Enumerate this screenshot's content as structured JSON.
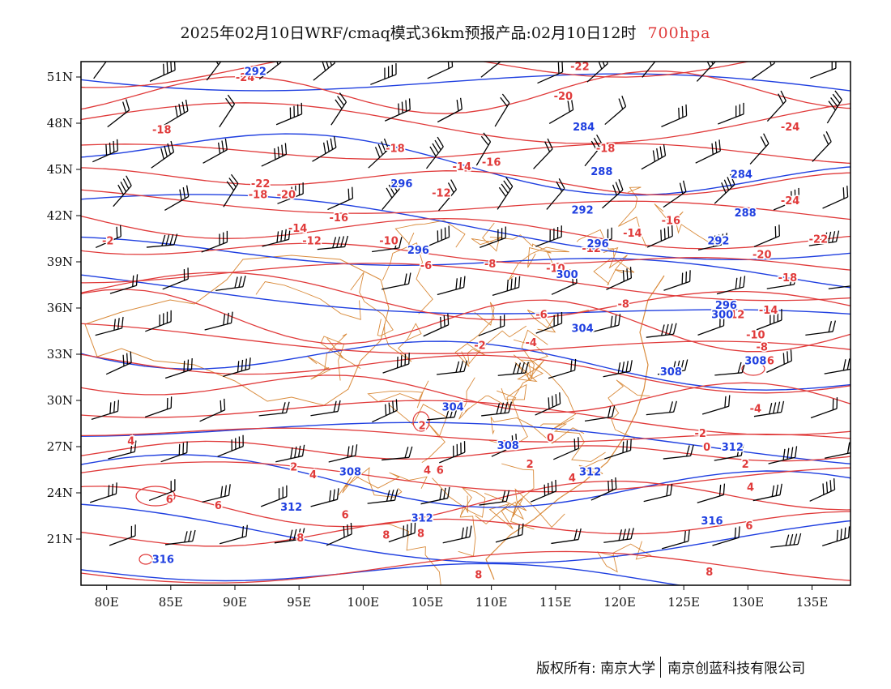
{
  "title": {
    "main": "2025年02月10日WRF/cmaq模式36km预报产品:02月10日12时",
    "level": "700hpa"
  },
  "colors": {
    "temperature": "#e03a3a",
    "geopotential": "#1f3fe0",
    "borders": "#d98a3a",
    "wind": "#000000",
    "frame": "#000000"
  },
  "map": {
    "lon_range": [
      78,
      138
    ],
    "lat_range": [
      18,
      52
    ],
    "lon_ticks": [
      "80E",
      "85E",
      "90E",
      "95E",
      "100E",
      "105E",
      "110E",
      "115E",
      "120E",
      "125E",
      "130E",
      "135E"
    ],
    "lat_ticks": [
      "21N",
      "24N",
      "27N",
      "30N",
      "33N",
      "36N",
      "39N",
      "42N",
      "45N",
      "48N",
      "51N"
    ]
  },
  "temperature_labels": [
    {
      "lon": 90.8,
      "lat": 51.0,
      "text": "-24"
    },
    {
      "lon": 84.3,
      "lat": 47.6,
      "text": "-18"
    },
    {
      "lon": 116.9,
      "lat": 51.7,
      "text": "-22"
    },
    {
      "lon": 115.6,
      "lat": 49.8,
      "text": "-20"
    },
    {
      "lon": 133.3,
      "lat": 47.8,
      "text": "-24"
    },
    {
      "lon": 102.5,
      "lat": 46.4,
      "text": "-18"
    },
    {
      "lon": 107.7,
      "lat": 45.2,
      "text": "-14"
    },
    {
      "lon": 110.0,
      "lat": 45.5,
      "text": "-16"
    },
    {
      "lon": 118.9,
      "lat": 46.4,
      "text": "-18"
    },
    {
      "lon": 92.0,
      "lat": 44.1,
      "text": "-22"
    },
    {
      "lon": 91.8,
      "lat": 43.4,
      "text": "-18"
    },
    {
      "lon": 94.0,
      "lat": 43.4,
      "text": "-20"
    },
    {
      "lon": 106.1,
      "lat": 43.5,
      "text": "-12"
    },
    {
      "lon": 98.1,
      "lat": 41.9,
      "text": "-16"
    },
    {
      "lon": 94.9,
      "lat": 41.2,
      "text": "-14"
    },
    {
      "lon": 96.0,
      "lat": 40.4,
      "text": "-12"
    },
    {
      "lon": 102.0,
      "lat": 40.4,
      "text": "-10"
    },
    {
      "lon": 80.1,
      "lat": 40.4,
      "text": "-2"
    },
    {
      "lon": 133.3,
      "lat": 43.0,
      "text": "-24"
    },
    {
      "lon": 124.0,
      "lat": 41.7,
      "text": "-16"
    },
    {
      "lon": 121.0,
      "lat": 40.9,
      "text": "-14"
    },
    {
      "lon": 117.8,
      "lat": 39.9,
      "text": "-12"
    },
    {
      "lon": 135.5,
      "lat": 40.5,
      "text": "-22"
    },
    {
      "lon": 131.1,
      "lat": 39.5,
      "text": "-20"
    },
    {
      "lon": 133.1,
      "lat": 38.0,
      "text": "-18"
    },
    {
      "lon": 115.0,
      "lat": 38.6,
      "text": "-10"
    },
    {
      "lon": 104.9,
      "lat": 38.8,
      "text": "-6"
    },
    {
      "lon": 109.9,
      "lat": 38.9,
      "text": "-8"
    },
    {
      "lon": 120.3,
      "lat": 36.3,
      "text": "-8"
    },
    {
      "lon": 113.9,
      "lat": 35.6,
      "text": "-6"
    },
    {
      "lon": 129.0,
      "lat": 35.6,
      "text": "-12"
    },
    {
      "lon": 131.6,
      "lat": 35.9,
      "text": "-14"
    },
    {
      "lon": 130.6,
      "lat": 34.3,
      "text": "-10"
    },
    {
      "lon": 131.1,
      "lat": 33.5,
      "text": "-8"
    },
    {
      "lon": 131.6,
      "lat": 32.6,
      "text": "-6"
    },
    {
      "lon": 130.6,
      "lat": 29.5,
      "text": "-4"
    },
    {
      "lon": 109.1,
      "lat": 33.6,
      "text": "-2"
    },
    {
      "lon": 113.1,
      "lat": 33.8,
      "text": "-4"
    },
    {
      "lon": 104.6,
      "lat": 28.4,
      "text": "2"
    },
    {
      "lon": 81.9,
      "lat": 27.4,
      "text": "4"
    },
    {
      "lon": 94.6,
      "lat": 25.7,
      "text": "2"
    },
    {
      "lon": 96.1,
      "lat": 25.2,
      "text": "4"
    },
    {
      "lon": 105.0,
      "lat": 25.5,
      "text": "4"
    },
    {
      "lon": 106.0,
      "lat": 25.5,
      "text": "6"
    },
    {
      "lon": 114.6,
      "lat": 27.6,
      "text": "0"
    },
    {
      "lon": 113.0,
      "lat": 25.9,
      "text": "2"
    },
    {
      "lon": 116.3,
      "lat": 25.0,
      "text": "4"
    },
    {
      "lon": 126.3,
      "lat": 27.9,
      "text": "-2"
    },
    {
      "lon": 126.8,
      "lat": 27.0,
      "text": "0"
    },
    {
      "lon": 129.8,
      "lat": 25.9,
      "text": "2"
    },
    {
      "lon": 130.2,
      "lat": 24.4,
      "text": "4"
    },
    {
      "lon": 84.9,
      "lat": 23.6,
      "text": "6"
    },
    {
      "lon": 88.7,
      "lat": 23.2,
      "text": "6"
    },
    {
      "lon": 98.6,
      "lat": 22.6,
      "text": "6"
    },
    {
      "lon": 95.1,
      "lat": 21.1,
      "text": "8"
    },
    {
      "lon": 101.8,
      "lat": 21.3,
      "text": "8"
    },
    {
      "lon": 104.5,
      "lat": 21.4,
      "text": "8"
    },
    {
      "lon": 130.1,
      "lat": 21.9,
      "text": "6"
    },
    {
      "lon": 109.0,
      "lat": 18.7,
      "text": "8"
    },
    {
      "lon": 127.0,
      "lat": 18.9,
      "text": "8"
    }
  ],
  "height_labels": [
    {
      "lon": 91.6,
      "lat": 51.4,
      "text": "292"
    },
    {
      "lon": 117.2,
      "lat": 47.8,
      "text": "284"
    },
    {
      "lon": 118.6,
      "lat": 44.9,
      "text": "288"
    },
    {
      "lon": 129.5,
      "lat": 44.7,
      "text": "284"
    },
    {
      "lon": 103.0,
      "lat": 44.1,
      "text": "296"
    },
    {
      "lon": 117.1,
      "lat": 42.4,
      "text": "292"
    },
    {
      "lon": 129.8,
      "lat": 42.2,
      "text": "288"
    },
    {
      "lon": 118.3,
      "lat": 40.2,
      "text": "296"
    },
    {
      "lon": 127.7,
      "lat": 40.4,
      "text": "292"
    },
    {
      "lon": 104.3,
      "lat": 39.8,
      "text": "296"
    },
    {
      "lon": 115.9,
      "lat": 38.2,
      "text": "300"
    },
    {
      "lon": 128.3,
      "lat": 36.2,
      "text": "296"
    },
    {
      "lon": 128.0,
      "lat": 35.6,
      "text": "300"
    },
    {
      "lon": 117.1,
      "lat": 34.7,
      "text": "304"
    },
    {
      "lon": 124.0,
      "lat": 31.9,
      "text": "308"
    },
    {
      "lon": 130.6,
      "lat": 32.6,
      "text": "308"
    },
    {
      "lon": 107.0,
      "lat": 29.6,
      "text": "304"
    },
    {
      "lon": 111.3,
      "lat": 27.1,
      "text": "308"
    },
    {
      "lon": 128.8,
      "lat": 27.0,
      "text": "312"
    },
    {
      "lon": 99.0,
      "lat": 25.4,
      "text": "308"
    },
    {
      "lon": 117.7,
      "lat": 25.4,
      "text": "312"
    },
    {
      "lon": 94.4,
      "lat": 23.1,
      "text": "312"
    },
    {
      "lon": 104.6,
      "lat": 22.4,
      "text": "312"
    },
    {
      "lon": 127.2,
      "lat": 22.2,
      "text": "316"
    },
    {
      "lon": 84.4,
      "lat": 19.7,
      "text": "316"
    }
  ],
  "copyright": {
    "left": "版权所有: 南京大学",
    "right": "南京创蓝科技有限公司"
  }
}
